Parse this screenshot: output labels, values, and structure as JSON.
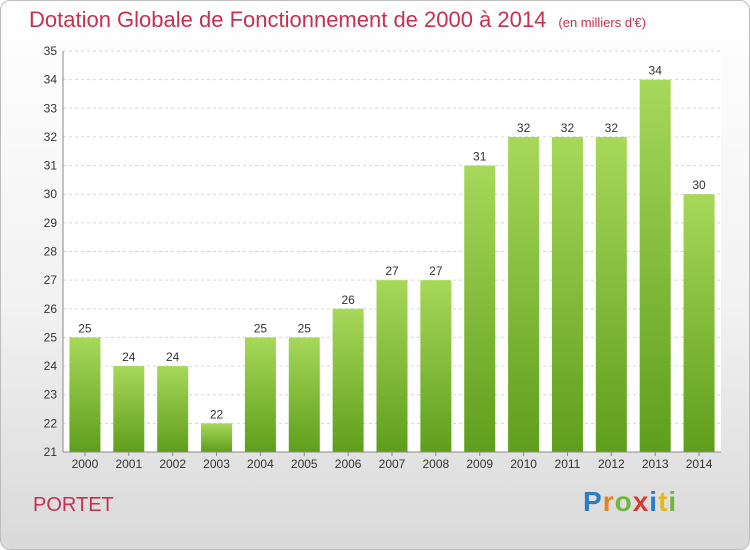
{
  "title": "Dotation Globale de Fonctionnement de 2000 à 2014",
  "subtitle": "(en milliers d'€)",
  "town": "PORTET",
  "logo": {
    "letters": [
      "P",
      "r",
      "o",
      "x",
      "i",
      "t",
      "i"
    ],
    "colors": [
      "#2a7cc7",
      "#e8841a",
      "#6fb63b",
      "#d83a34",
      "#2a7cc7",
      "#e8b81a",
      "#6fb63b"
    ]
  },
  "colors": {
    "bar_top": "#a7d85a",
    "bar_bottom": "#5f9e1c",
    "title": "#c7304f"
  },
  "chart_data": {
    "type": "bar",
    "title": "Dotation Globale de Fonctionnement de 2000 à 2014",
    "subtitle": "(en milliers d'€)",
    "categories": [
      "2000",
      "2001",
      "2002",
      "2003",
      "2004",
      "2005",
      "2006",
      "2007",
      "2008",
      "2009",
      "2010",
      "2011",
      "2012",
      "2013",
      "2014"
    ],
    "values": [
      25,
      24,
      24,
      22,
      25,
      25,
      26,
      27,
      27,
      31,
      32,
      32,
      32,
      34,
      30
    ],
    "ylim": [
      21,
      35
    ],
    "yticks": [
      21,
      22,
      23,
      24,
      25,
      26,
      27,
      28,
      29,
      30,
      31,
      32,
      33,
      34,
      35
    ],
    "grid": true,
    "legend": "none"
  }
}
